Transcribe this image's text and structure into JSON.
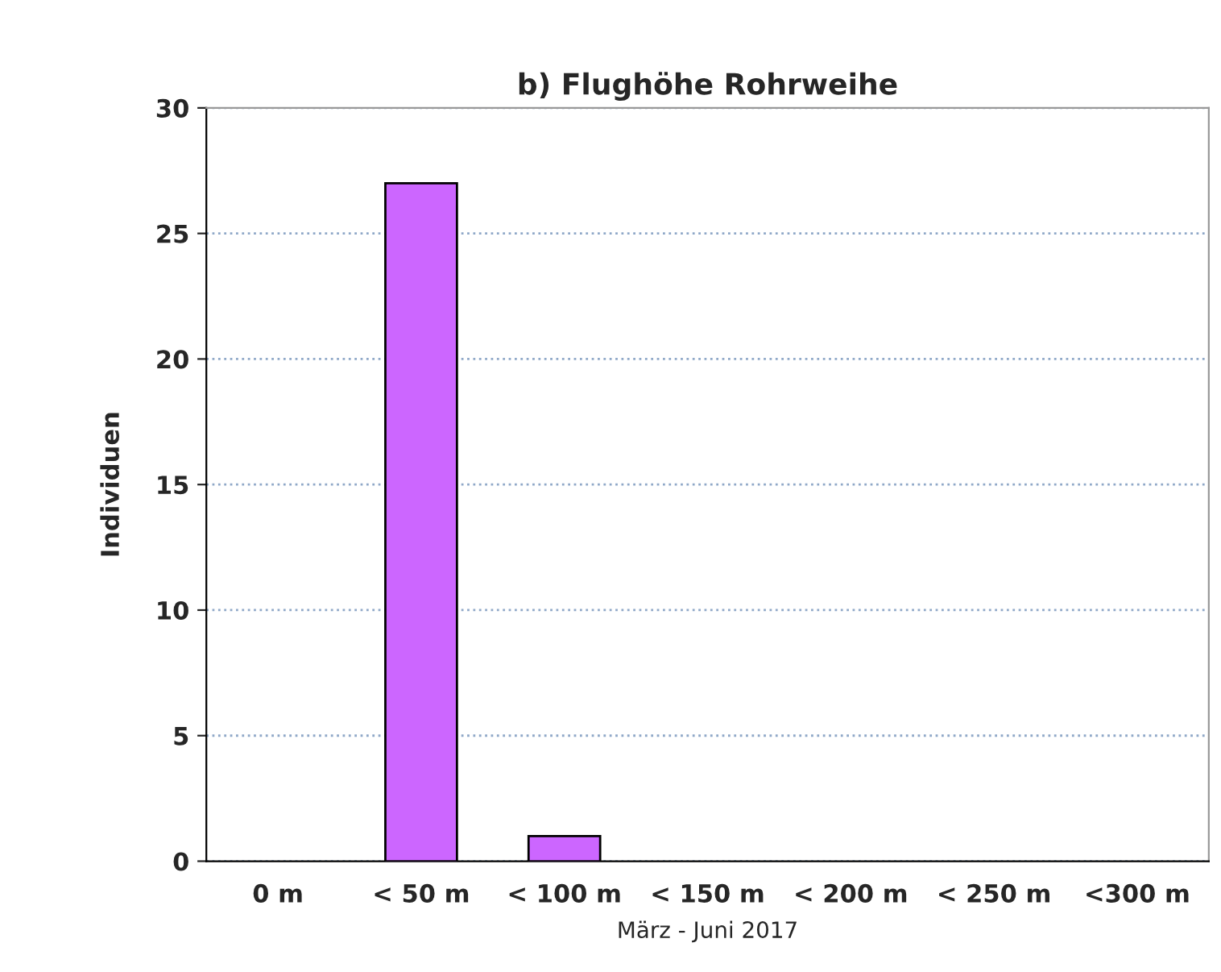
{
  "chart_data": {
    "type": "bar",
    "title": "b) Flughöhe Rohrweihe",
    "xlabel": "März - Juni 2017",
    "ylabel": "Individuen",
    "categories": [
      "0 m",
      "< 50 m",
      "< 100 m",
      "< 150 m",
      "< 200 m",
      "< 250 m",
      "<300 m"
    ],
    "values": [
      0,
      27,
      1,
      0,
      0,
      0,
      0
    ],
    "color": "#cc66ff",
    "ylim": [
      0,
      30
    ],
    "yticks": [
      0,
      5,
      10,
      15,
      20,
      25,
      30
    ],
    "grid": "y",
    "legend": false
  }
}
